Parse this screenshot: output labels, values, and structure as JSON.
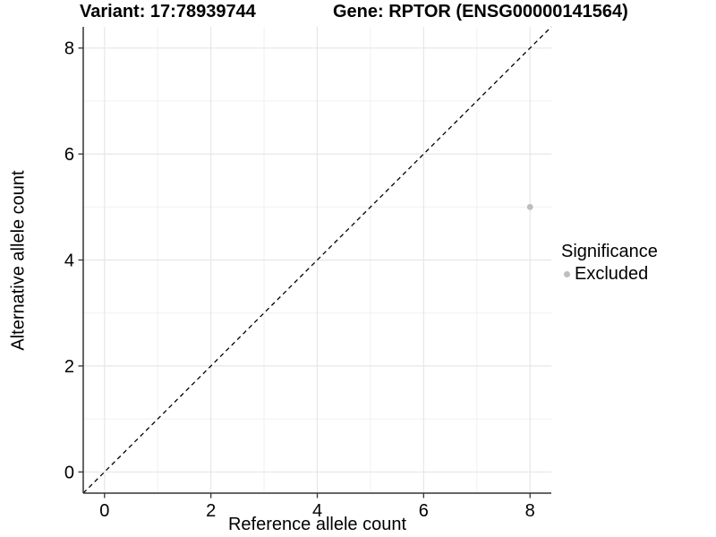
{
  "chart_data": {
    "type": "scatter",
    "title_left": "Variant: 17:78939744",
    "title_right": "Gene: RPTOR (ENSG00000141564)",
    "xlabel": "Reference allele count",
    "ylabel": "Alternative allele count",
    "xlim": [
      -0.4,
      8.4
    ],
    "ylim": [
      -0.4,
      8.4
    ],
    "x_ticks": [
      0,
      2,
      4,
      6,
      8
    ],
    "y_ticks": [
      0,
      2,
      4,
      6,
      8
    ],
    "x_minor_ticks": [
      1,
      3,
      5,
      7
    ],
    "y_minor_ticks": [
      1,
      3,
      5,
      7
    ],
    "grid": true,
    "points": [
      {
        "x": 8,
        "y": 5,
        "significance": "Excluded"
      }
    ],
    "reference_line": {
      "type": "identity",
      "slope": 1,
      "intercept": 0,
      "style": "dashed"
    },
    "legend": {
      "title": "Significance",
      "position": "right",
      "items": [
        {
          "label": "Excluded",
          "color": "#bebebe"
        }
      ]
    }
  },
  "colors": {
    "background": "#ffffff",
    "grid_major": "#e7e7e7",
    "grid_minor": "#f1f1f1",
    "axis": "#333333",
    "tick_text": "#000000",
    "reference_line": "#000000",
    "point_excluded": "#bebebe"
  }
}
